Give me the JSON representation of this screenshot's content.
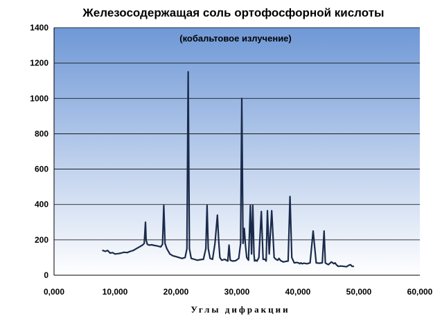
{
  "chart_data": {
    "type": "line",
    "title": "Железосодержащая соль ортофосфорной кислоты",
    "subtitle": "(кобальтовое излучение)",
    "xlabel": "Углы дифракции",
    "ylabel": "",
    "xlim": [
      0,
      60000
    ],
    "ylim": [
      0,
      1400
    ],
    "x_ticks": [
      0,
      10000,
      20000,
      30000,
      40000,
      50000,
      60000
    ],
    "x_tick_labels": [
      "0,000",
      "10,000",
      "20,000",
      "30,000",
      "40,000",
      "50,000",
      "60,000"
    ],
    "y_ticks": [
      0,
      200,
      400,
      600,
      800,
      1000,
      1200,
      1400
    ],
    "y_tick_labels": [
      "0",
      "200",
      "400",
      "600",
      "800",
      "1000",
      "1200",
      "1400"
    ],
    "grid": true,
    "legend": "none",
    "colors": {
      "line": "#1a2a4a",
      "plot_bg_top": "#6f98d6",
      "plot_bg_bottom": "#ffffff",
      "grid": "#000000"
    },
    "series": [
      {
        "x": [
          8000,
          8400,
          8800,
          9200,
          9600,
          10000,
          10500,
          11000,
          11500,
          12000,
          12500,
          13000,
          13500,
          14000,
          14500,
          14800,
          15000,
          15100,
          15300,
          15600,
          16000,
          16500,
          17000,
          17500,
          17800,
          18000,
          18200,
          18500,
          19000,
          19500,
          20000,
          20500,
          21000,
          21500,
          21800,
          22000,
          22200,
          22500,
          23000,
          23500,
          24000,
          24500,
          24900,
          25100,
          25300,
          25600,
          26000,
          26400,
          26800,
          27000,
          27200,
          27500,
          28000,
          28500,
          28700,
          28900,
          29300,
          29800,
          30300,
          30600,
          30800,
          31000,
          31200,
          31400,
          31600,
          31900,
          32200,
          32400,
          32600,
          32800,
          32900,
          33100,
          33300,
          33600,
          34000,
          34300,
          34600,
          34800,
          35000,
          35300,
          35700,
          36100,
          36400,
          36700,
          36900,
          37100,
          37300,
          37600,
          38000,
          38400,
          38700,
          39000,
          39400,
          39800,
          40100,
          40300,
          40500,
          40700,
          41000,
          41500,
          42000,
          42500,
          43000,
          43500,
          44000,
          44300,
          44500,
          44700,
          45000,
          45500,
          45900,
          46100,
          46300,
          46600,
          47000,
          47500,
          48000,
          48300,
          48600,
          48900,
          49100
        ],
        "values": [
          140,
          135,
          140,
          125,
          128,
          120,
          122,
          125,
          130,
          128,
          135,
          140,
          150,
          160,
          170,
          180,
          300,
          200,
          175,
          170,
          172,
          168,
          165,
          160,
          175,
          395,
          180,
          150,
          120,
          110,
          105,
          100,
          95,
          100,
          150,
          1150,
          150,
          95,
          90,
          85,
          88,
          90,
          150,
          395,
          150,
          95,
          90,
          180,
          340,
          200,
          100,
          85,
          90,
          80,
          170,
          85,
          80,
          82,
          95,
          180,
          1000,
          180,
          265,
          170,
          100,
          85,
          395,
          120,
          395,
          120,
          80,
          85,
          80,
          100,
          360,
          90,
          90,
          80,
          365,
          120,
          365,
          100,
          90,
          85,
          95,
          85,
          80,
          75,
          78,
          80,
          445,
          100,
          70,
          72,
          70,
          65,
          70,
          65,
          68,
          65,
          70,
          250,
          70,
          68,
          70,
          250,
          70,
          65,
          60,
          75,
          65,
          70,
          60,
          50,
          52,
          50,
          48,
          55,
          60,
          50,
          50
        ]
      }
    ]
  }
}
